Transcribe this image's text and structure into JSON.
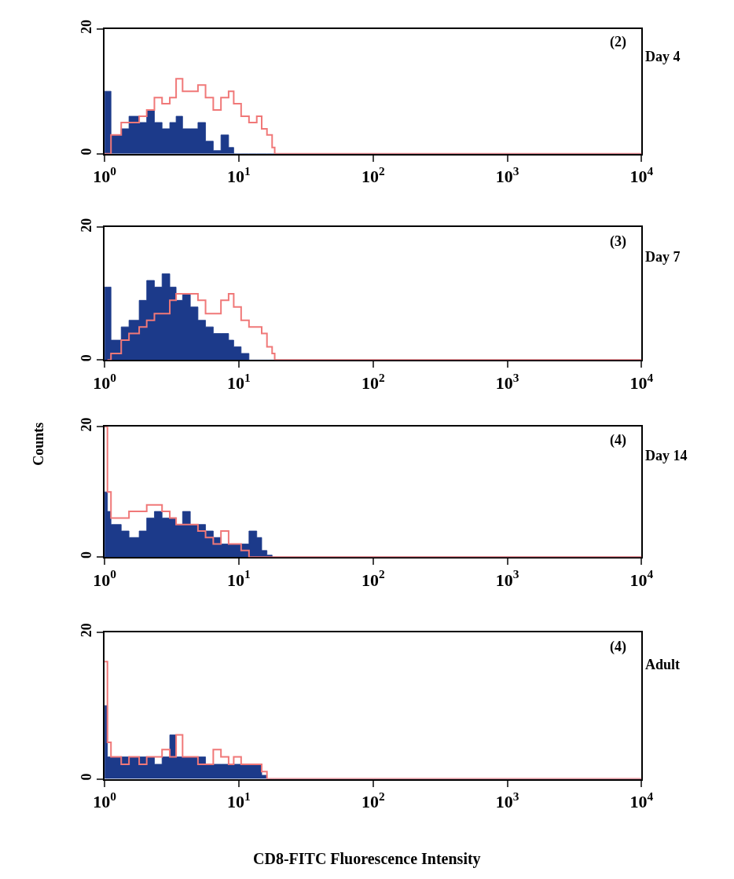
{
  "chart_data": [
    {
      "type": "area",
      "x": [
        1,
        1.05,
        1.116,
        1.33,
        1.52,
        1.81,
        2.06,
        2.35,
        2.68,
        3.06,
        3.41,
        3.81,
        4.35,
        4.96,
        5.65,
        6.45,
        7.36,
        8.39,
        9.16,
        10.4,
        11.9,
        13.6,
        14.8,
        16.2,
        17.7,
        18.5,
        10000
      ],
      "log": "x",
      "xlim": [
        1,
        10000
      ],
      "ylim": [
        0,
        20
      ],
      "yticks": [
        0,
        20
      ],
      "xticks": [
        {
          "value": 1,
          "label": "10$^{0}$"
        },
        {
          "value": 10,
          "label": "10$^{1}$"
        },
        {
          "value": 100,
          "label": "10$^{2}$"
        },
        {
          "value": 1000,
          "label": "10$^{3}$"
        },
        {
          "value": 10000,
          "label": "10$^{4}$"
        }
      ],
      "annotations": [
        "(2)",
        "Day 4"
      ],
      "series": [
        {
          "color": "#1c3a8a",
          "values": [
            10,
            10,
            3,
            4,
            6,
            5,
            7,
            5,
            4,
            5,
            6,
            4,
            4,
            5,
            2,
            0.5,
            3,
            1,
            0,
            0,
            0,
            0,
            0,
            0,
            0,
            0,
            0
          ]
        },
        {
          "type": "step",
          "color": "#f07878",
          "values": [
            0,
            0,
            3,
            5,
            5,
            6,
            7,
            9,
            8,
            9,
            12,
            10,
            10,
            11,
            9,
            7,
            9,
            10,
            8,
            6,
            5,
            6,
            4,
            3,
            1,
            0,
            0
          ]
        }
      ]
    },
    {
      "type": "area",
      "x": [
        1,
        1.05,
        1.116,
        1.33,
        1.52,
        1.81,
        2.06,
        2.35,
        2.68,
        3.06,
        3.41,
        3.81,
        4.35,
        4.96,
        5.65,
        6.45,
        7.36,
        8.39,
        9.16,
        10.4,
        11.9,
        13.6,
        14.8,
        16.2,
        17.7,
        18.5,
        10000
      ],
      "log": "x",
      "xlim": [
        1,
        10000
      ],
      "ylim": [
        0,
        20
      ],
      "yticks": [
        0,
        20
      ],
      "xticks": [
        {
          "value": 1,
          "label": "10$^{0}$"
        },
        {
          "value": 10,
          "label": "10$^{1}$"
        },
        {
          "value": 100,
          "label": "10$^{2}$"
        },
        {
          "value": 1000,
          "label": "10$^{3}$"
        },
        {
          "value": 10000,
          "label": "10$^{4}$"
        }
      ],
      "annotations": [
        "(3)",
        "Day 7"
      ],
      "ylabel": "Counts",
      "series": [
        {
          "color": "#1c3a8a",
          "values": [
            11,
            11,
            3,
            5,
            6,
            9,
            12,
            11,
            13,
            11,
            9,
            10,
            8,
            6,
            5,
            4,
            4,
            3,
            2,
            1,
            0,
            0,
            0,
            0,
            0,
            0,
            0
          ]
        },
        {
          "type": "step",
          "color": "#f07878",
          "values": [
            null,
            0,
            1,
            3,
            4,
            5,
            6,
            7,
            7,
            9,
            10,
            10,
            10,
            9,
            7,
            7,
            9,
            10,
            8,
            6,
            5,
            5,
            4,
            2,
            1,
            0,
            0
          ]
        }
      ]
    },
    {
      "type": "area",
      "x": [
        1,
        1.05,
        1.116,
        1.33,
        1.52,
        1.81,
        2.06,
        2.35,
        2.68,
        3.06,
        3.41,
        3.81,
        4.35,
        4.96,
        5.65,
        6.45,
        7.36,
        8.39,
        9.16,
        10.4,
        11.9,
        13.6,
        14.8,
        16.2,
        17.7,
        18.5,
        10000
      ],
      "log": "x",
      "xlim": [
        1,
        10000
      ],
      "ylim": [
        0,
        20
      ],
      "yticks": [
        0,
        20
      ],
      "xticks": [
        {
          "value": 1,
          "label": "10$^{0}$"
        },
        {
          "value": 10,
          "label": "10$^{1}$"
        },
        {
          "value": 100,
          "label": "10$^{2}$"
        },
        {
          "value": 1000,
          "label": "10$^{3}$"
        },
        {
          "value": 10000,
          "label": "10$^{4}$"
        }
      ],
      "annotations": [
        "(4)",
        "Day 14"
      ],
      "series": [
        {
          "color": "#1c3a8a",
          "values": [
            10,
            7,
            5,
            4,
            3,
            4,
            6,
            7,
            6,
            6,
            5,
            7,
            5,
            5,
            4,
            3,
            2,
            2,
            2,
            2,
            4,
            3,
            1,
            0.3,
            0,
            0,
            0
          ]
        },
        {
          "type": "step",
          "color": "#f07878",
          "values": [
            20,
            10,
            6,
            6,
            7,
            7,
            8,
            8,
            7,
            6,
            5,
            5,
            5,
            4,
            3,
            2,
            4,
            2,
            2,
            1,
            0,
            null,
            null,
            null,
            0,
            0,
            0
          ]
        }
      ]
    },
    {
      "type": "area",
      "x": [
        1,
        1.05,
        1.116,
        1.33,
        1.52,
        1.81,
        2.06,
        2.35,
        2.68,
        3.06,
        3.41,
        3.81,
        4.35,
        4.96,
        5.65,
        6.45,
        7.36,
        8.39,
        9.16,
        10.4,
        11.9,
        13.6,
        14.8,
        16.2,
        17.7,
        18.5,
        10000
      ],
      "log": "x",
      "xlim": [
        1,
        10000
      ],
      "ylim": [
        0,
        20
      ],
      "yticks": [
        0,
        20
      ],
      "xticks": [
        {
          "value": 1,
          "label": "10$^{0}$"
        },
        {
          "value": 10,
          "label": "10$^{1}$"
        },
        {
          "value": 100,
          "label": "10$^{2}$"
        },
        {
          "value": 1000,
          "label": "10$^{3}$"
        },
        {
          "value": 10000,
          "label": "10$^{4}$"
        }
      ],
      "annotations": [
        "(4)",
        "Adult"
      ],
      "xlabel": "CD8-FITC Fluorescence Intensity",
      "series": [
        {
          "color": "#1c3a8a",
          "values": [
            10,
            3,
            3,
            3,
            3,
            3,
            3,
            2,
            3,
            6,
            3,
            3,
            3,
            3,
            2,
            2,
            2,
            2,
            2,
            2,
            2,
            2,
            0.5,
            0,
            0,
            0,
            0
          ]
        },
        {
          "type": "step",
          "color": "#f07878",
          "values": [
            16,
            5,
            3,
            2,
            3,
            2,
            3,
            3,
            4,
            3,
            6,
            3,
            3,
            2,
            2,
            4,
            3,
            2,
            3,
            2,
            2,
            2,
            1,
            0,
            0,
            0,
            0
          ]
        }
      ]
    }
  ]
}
